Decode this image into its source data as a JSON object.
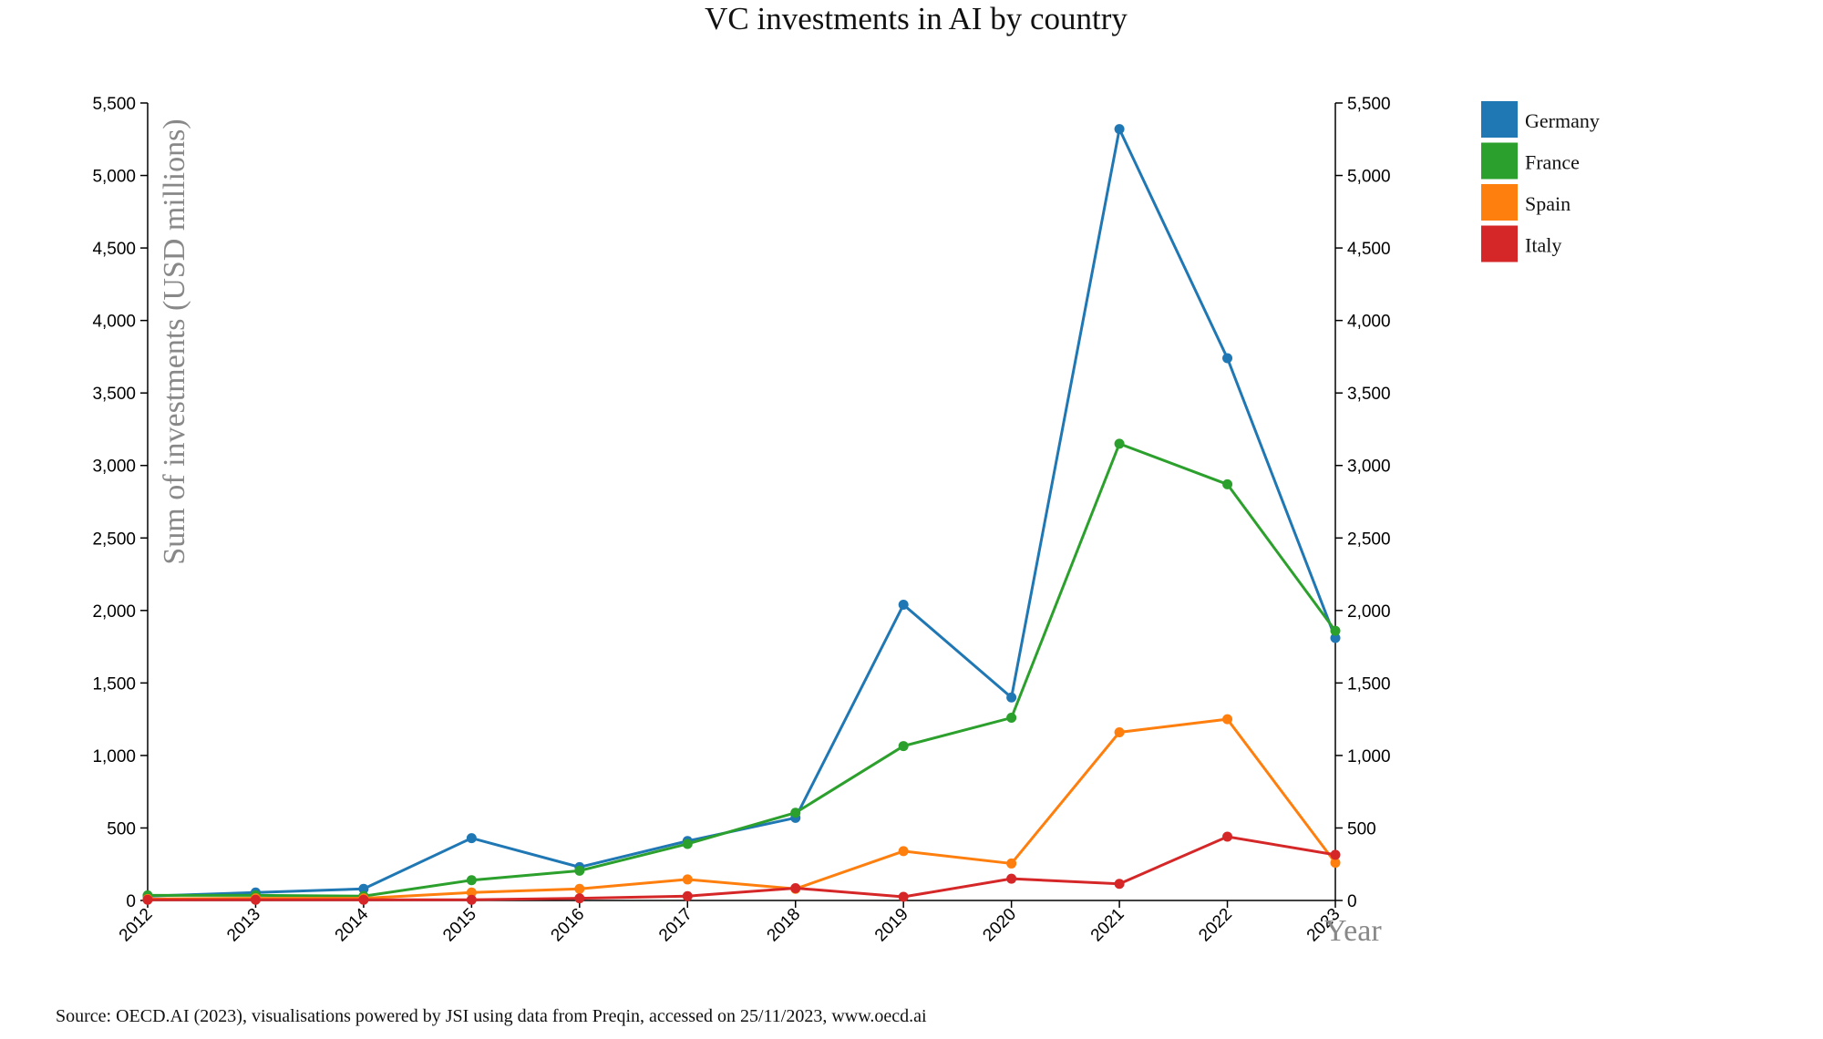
{
  "chart_data": {
    "type": "line",
    "title": "VC investments in AI by country",
    "ylabel": "Sum of investments (USD millions)",
    "xlabel": "Year",
    "x": [
      "2012",
      "2013",
      "2014",
      "2015",
      "2016",
      "2017",
      "2018",
      "2019",
      "2020",
      "2021",
      "2022",
      "2023"
    ],
    "ylim": [
      0,
      5500
    ],
    "yticks": [
      0,
      500,
      1000,
      1500,
      2000,
      2500,
      3000,
      3500,
      4000,
      4500,
      5000,
      5500
    ],
    "ytick_labels": [
      "0",
      "500",
      "1,000",
      "1,500",
      "2,000",
      "2,500",
      "3,000",
      "3,500",
      "4,000",
      "4,500",
      "5,000",
      "5,500"
    ],
    "series": [
      {
        "name": "Germany",
        "color": "#1f77b4",
        "values": [
          30,
          55,
          80,
          430,
          230,
          410,
          570,
          2040,
          1400,
          5320,
          3740,
          1810
        ]
      },
      {
        "name": "France",
        "color": "#2ca02c",
        "values": [
          35,
          35,
          30,
          140,
          205,
          390,
          605,
          1065,
          1260,
          3150,
          2870,
          1860
        ]
      },
      {
        "name": "Spain",
        "color": "#ff7f0e",
        "values": [
          10,
          15,
          15,
          55,
          80,
          145,
          80,
          340,
          255,
          1160,
          1250,
          260
        ]
      },
      {
        "name": "Italy",
        "color": "#d62728",
        "values": [
          5,
          5,
          5,
          5,
          15,
          30,
          85,
          25,
          150,
          115,
          440,
          315
        ]
      }
    ],
    "grid": false,
    "legend_position": "top-right",
    "secondary_y_axis": true
  },
  "source_note": "Source: OECD.AI (2023), visualisations powered by JSI using data from Preqin, accessed on 25/11/2023, www.oecd.ai"
}
